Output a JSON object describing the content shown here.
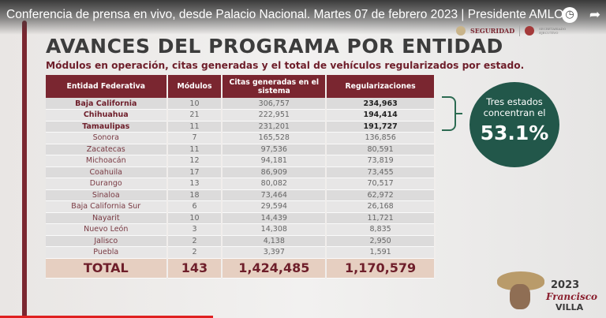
{
  "video": {
    "title": "Conferencia de prensa en vivo, desde Palacio Nacional. Martes 07 de febrero 2023 | Presidente AMLO",
    "icons": [
      "clock-icon",
      "share-icon"
    ]
  },
  "logos": {
    "seguridad": "SEGURIDAD",
    "secretariado": "SECRETARIADO EJECUTIVO"
  },
  "slide": {
    "title": "AVANCES DEL PROGRAMA POR ENTIDAD",
    "subtitle": "Módulos en operación, citas generadas y el total de vehículos regularizados por estado.",
    "headers": [
      "Entidad Federativa",
      "Módulos",
      "Citas generadas en el sistema",
      "Regularizaciones"
    ],
    "rows": [
      [
        "Baja California",
        "10",
        "306,757",
        "234,963"
      ],
      [
        "Chihuahua",
        "21",
        "222,951",
        "194,414"
      ],
      [
        "Tamaulipas",
        "11",
        "231,201",
        "191,727"
      ],
      [
        "Sonora",
        "7",
        "165,528",
        "136,856"
      ],
      [
        "Zacatecas",
        "11",
        "97,536",
        "80,591"
      ],
      [
        "Michoacán",
        "12",
        "94,181",
        "73,819"
      ],
      [
        "Coahuila",
        "17",
        "86,909",
        "73,455"
      ],
      [
        "Durango",
        "13",
        "80,082",
        "70,517"
      ],
      [
        "Sinaloa",
        "18",
        "73,464",
        "62,972"
      ],
      [
        "Baja California Sur",
        "6",
        "29,594",
        "26,168"
      ],
      [
        "Nayarit",
        "10",
        "14,439",
        "11,721"
      ],
      [
        "Nuevo León",
        "3",
        "14,308",
        "8,835"
      ],
      [
        "Jalisco",
        "2",
        "4,138",
        "2,950"
      ],
      [
        "Puebla",
        "2",
        "3,397",
        "1,591"
      ]
    ],
    "total": [
      "TOTAL",
      "143",
      "1,424,485",
      "1,170,579"
    ],
    "callout": {
      "text": "Tres estados concentran el",
      "value": "53.1%"
    },
    "colors": {
      "maroon": "#7a2630",
      "green": "#22574a"
    }
  },
  "footer_logo": {
    "year": "2023",
    "name1": "Francisco",
    "name2": "VILLA"
  }
}
